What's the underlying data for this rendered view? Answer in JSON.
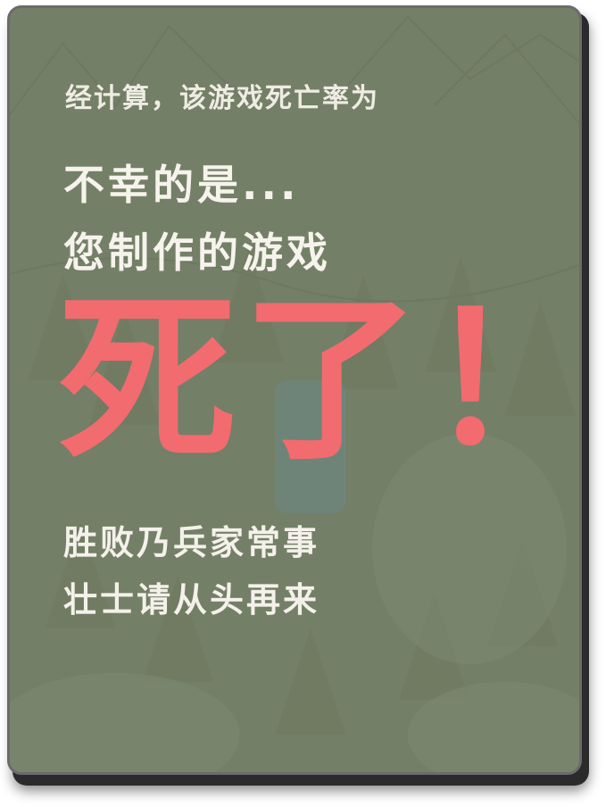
{
  "game_over_card": {
    "intro": "经计算，该游戏死亡率为",
    "headline_line1": "不幸的是...",
    "headline_line2": "您制作的游戏",
    "death_text": "死了！",
    "consolation_line1": "胜败乃兵家常事",
    "consolation_line2": "壮士请从头再来",
    "colors": {
      "background": "#747f67",
      "accent": "#f26b6f",
      "text": "#f4f1ea"
    }
  }
}
